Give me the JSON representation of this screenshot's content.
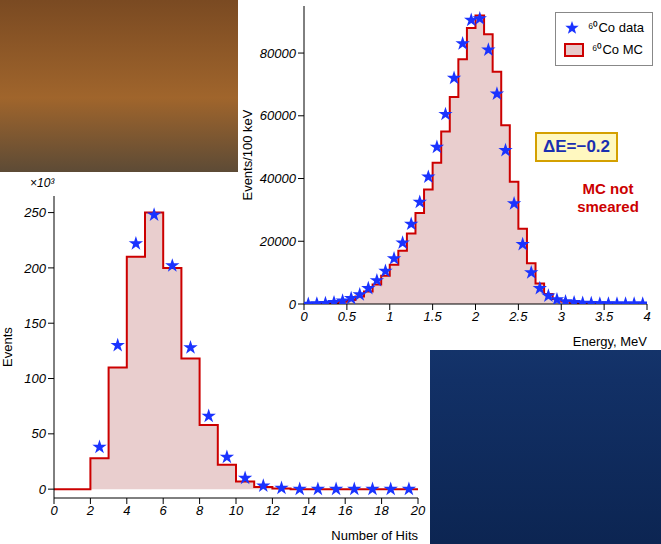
{
  "chart_data": [
    {
      "type": "histogram",
      "xlabel": "Energy, MeV",
      "ylabel": "Events/100 keV",
      "xlim": [
        0,
        4
      ],
      "xticks": [
        0,
        0.5,
        1,
        1.5,
        2,
        2.5,
        3,
        3.5,
        4
      ],
      "ylim": [
        0,
        95000
      ],
      "yticks": [
        0,
        20000,
        40000,
        60000,
        80000
      ],
      "grid": false,
      "legend": "upper right",
      "annotations": [
        "ΔE=−0.2",
        "MC not smeared"
      ],
      "bins": [
        0,
        0.1,
        0.2,
        0.3,
        0.4,
        0.5,
        0.6,
        0.7,
        0.8,
        0.9,
        1,
        1.1,
        1.2,
        1.3,
        1.4,
        1.5,
        1.6,
        1.7,
        1.8,
        1.9,
        2,
        2.1,
        2.2,
        2.3,
        2.4,
        2.5,
        2.6,
        2.7,
        2.8,
        2.9,
        3,
        3.1,
        3.2,
        3.3,
        3.4,
        3.5,
        3.6,
        3.7,
        3.8,
        3.9,
        4
      ],
      "series": [
        {
          "name": "⁶⁰Co data",
          "type": "scatter",
          "marker": "star",
          "color": "#1a33ff",
          "x": [
            0.05,
            0.15,
            0.25,
            0.35,
            0.45,
            0.55,
            0.65,
            0.75,
            0.85,
            0.95,
            1.05,
            1.15,
            1.25,
            1.35,
            1.45,
            1.55,
            1.65,
            1.75,
            1.85,
            1.95,
            2.05,
            2.15,
            2.25,
            2.35,
            2.45,
            2.55,
            2.65,
            2.75,
            2.85,
            2.95,
            3.05,
            3.15,
            3.25,
            3.35,
            3.45,
            3.55,
            3.65,
            3.75,
            3.85,
            3.95
          ],
          "values": [
            0,
            100,
            200,
            500,
            1000,
            1800,
            3000,
            5000,
            7500,
            10500,
            14500,
            19500,
            25500,
            32500,
            40500,
            50000,
            60500,
            72000,
            83000,
            90500,
            91000,
            81000,
            67000,
            49000,
            32000,
            19000,
            10000,
            5000,
            2600,
            1400,
            800,
            500,
            300,
            200,
            100,
            100,
            50,
            50,
            50,
            50
          ]
        },
        {
          "name": "⁶⁰Co MC",
          "type": "histogram",
          "color": "#cc0000",
          "values": [
            0,
            0,
            100,
            300,
            700,
            1300,
            2400,
            4000,
            6200,
            9000,
            12500,
            17000,
            22500,
            29000,
            36500,
            45000,
            55000,
            66000,
            78000,
            88000,
            92000,
            86000,
            74000,
            57000,
            39000,
            24000,
            13000,
            6500,
            3200,
            1600,
            800,
            400,
            200,
            100,
            50,
            20,
            10,
            0,
            0,
            0
          ]
        }
      ]
    },
    {
      "type": "histogram",
      "xlabel": "Number of Hits",
      "ylabel": "Events",
      "annotations": [
        "×10³"
      ],
      "xlim": [
        0,
        20
      ],
      "xticks": [
        0,
        2,
        4,
        6,
        8,
        10,
        12,
        14,
        16,
        18,
        20
      ],
      "ylim": [
        -8,
        265
      ],
      "yticks": [
        0,
        50,
        100,
        150,
        200,
        250
      ],
      "grid": false,
      "bins": [
        0,
        1,
        2,
        3,
        4,
        5,
        6,
        7,
        8,
        9,
        10,
        11,
        12,
        13,
        14,
        15,
        16,
        17,
        18,
        19,
        20
      ],
      "series": [
        {
          "type": "scatter",
          "marker": "star",
          "color": "#1a33ff",
          "x": [
            0.5,
            1.5,
            2.5,
            3.5,
            4.5,
            5.5,
            6.5,
            7.5,
            8.5,
            9.5,
            10.5,
            11.5,
            12.5,
            13.5,
            14.5,
            15.5,
            16.5,
            17.5,
            18.5,
            19.5
          ],
          "values": [
            null,
            null,
            38,
            130,
            222,
            248,
            202,
            128,
            66,
            29,
            10,
            3,
            1,
            0,
            0,
            0,
            0,
            0,
            0,
            0
          ]
        },
        {
          "type": "histogram",
          "color": "#cc0000",
          "values": [
            0,
            0,
            28,
            110,
            210,
            250,
            200,
            118,
            58,
            22,
            7,
            2,
            0.5,
            0,
            0,
            0,
            0,
            0,
            0,
            0
          ]
        }
      ]
    }
  ]
}
